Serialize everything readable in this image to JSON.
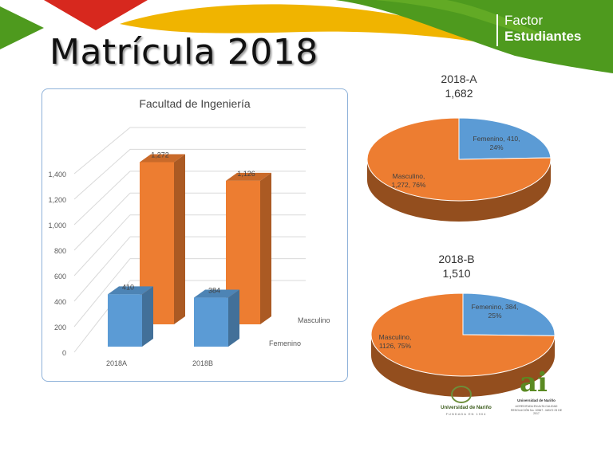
{
  "slide": {
    "title": "Matrícula 2018"
  },
  "brand": {
    "line1": "Factor",
    "line2": "Estudiantes"
  },
  "colors": {
    "femenino": "#5b9bd5",
    "masculino": "#ed7d31",
    "green": "#4e9a1e",
    "yellow": "#f0b400",
    "red": "#d7281e"
  },
  "logos": {
    "udenar_name": "Universidad de Nariño",
    "udenar_sub": "FUNDADA EN 1904",
    "ai_univ": "Universidad de Nariño",
    "ai_line1": "ACREDITADA EN ALTA CALIDAD",
    "ai_line2": "RESOLUCIÓN No. 10567 - MAYO 23 DE 2017"
  },
  "chart_data": [
    {
      "type": "bar",
      "title": "Facultad de Ingeniería",
      "categories": [
        "2018A",
        "2018B"
      ],
      "series": [
        {
          "name": "Femenino",
          "values": [
            410,
            384
          ],
          "labels": [
            "410",
            "384"
          ]
        },
        {
          "name": "Masculino",
          "values": [
            1272,
            1126
          ],
          "labels": [
            "1,272",
            "1,126"
          ]
        }
      ],
      "ylim": [
        0,
        1400
      ],
      "yticks": [
        "0",
        "200",
        "400",
        "600",
        "800",
        "1,000",
        "1,200",
        "1,400"
      ],
      "grid": true
    },
    {
      "type": "pie",
      "title": "2018-A",
      "subtitle": "1,682",
      "slices": [
        {
          "name": "Femenino",
          "value": 410,
          "percent": "24%",
          "label_line1": "Femenino, 410,",
          "label_line2": "24%"
        },
        {
          "name": "Masculino",
          "value": 1272,
          "percent": "76%",
          "label_line1": "Masculino,",
          "label_line2": "1,272, 76%"
        }
      ]
    },
    {
      "type": "pie",
      "title": "2018-B",
      "subtitle": "1,510",
      "slices": [
        {
          "name": "Femenino",
          "value": 384,
          "percent": "25%",
          "label_line1": "Femenino, 384,",
          "label_line2": "25%"
        },
        {
          "name": "Masculino",
          "value": 1126,
          "percent": "75%",
          "label_line1": "Masculino,",
          "label_line2": "1126, 75%"
        }
      ]
    }
  ]
}
